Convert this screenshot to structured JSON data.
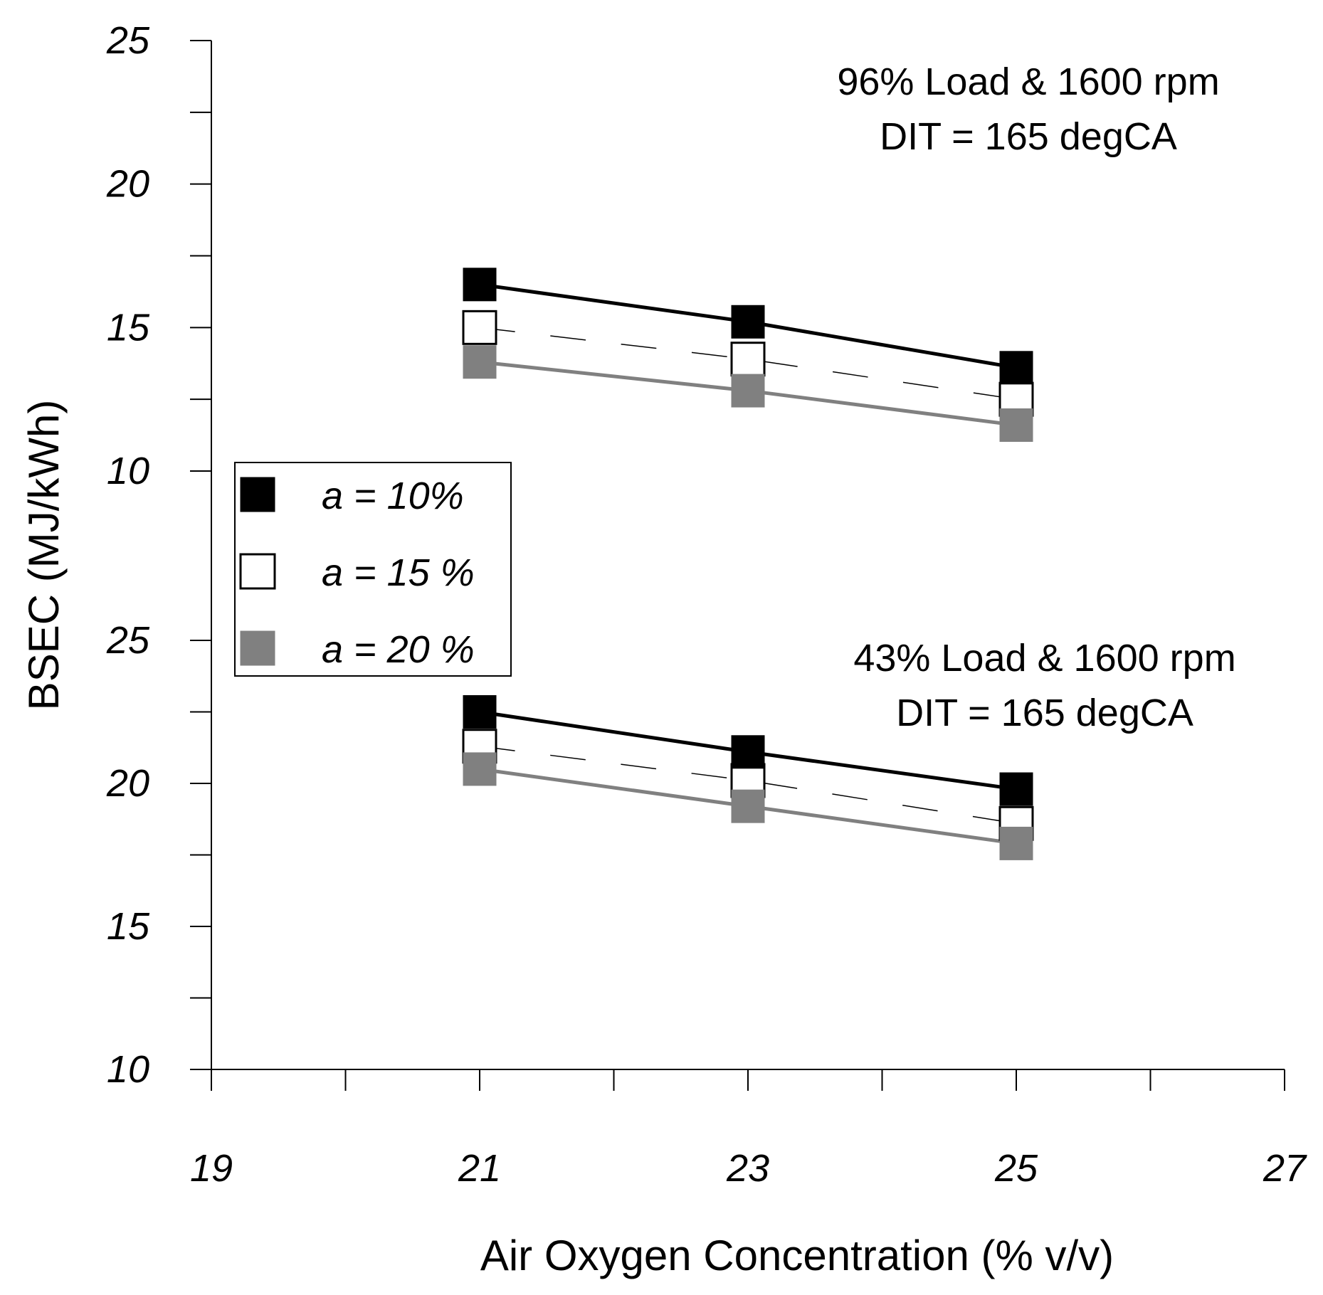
{
  "chart_data": {
    "type": "line",
    "xlabel": "Air Oxygen Concentration (% v/v)",
    "ylabel": "BSEC (MJ/kWh)",
    "xlim": [
      19,
      27
    ],
    "x_ticks": [
      "19",
      "21",
      "23",
      "25",
      "27"
    ],
    "panels": [
      {
        "name": "upper",
        "annotation": [
          "96% Load & 1600 rpm",
          "DIT = 165 degCA"
        ],
        "ylim": [
          10,
          25
        ],
        "y_ticks": [
          "10",
          "15",
          "20",
          "25"
        ],
        "x": [
          21,
          23,
          25
        ],
        "series": [
          {
            "name": "a = 10%",
            "values": [
              16.5,
              15.2,
              13.6
            ]
          },
          {
            "name": "a = 15 %",
            "values": [
              15.0,
              13.9,
              12.5
            ]
          },
          {
            "name": "a = 20 %",
            "values": [
              13.8,
              12.8,
              11.6
            ]
          }
        ]
      },
      {
        "name": "lower",
        "annotation": [
          "43% Load & 1600 rpm",
          "DIT = 165 degCA"
        ],
        "ylim": [
          10,
          25
        ],
        "y_ticks": [
          "10",
          "15",
          "20",
          "25"
        ],
        "x": [
          21,
          23,
          25
        ],
        "series": [
          {
            "name": "a = 10%",
            "values": [
              22.5,
              21.1,
              19.8
            ]
          },
          {
            "name": "a = 15 %",
            "values": [
              21.3,
              20.1,
              18.6
            ]
          },
          {
            "name": "a = 20 %",
            "values": [
              20.5,
              19.2,
              17.9
            ]
          }
        ]
      }
    ],
    "legend": {
      "placement": "left-middle",
      "entries": [
        {
          "label": "a = 10%",
          "marker": "filled-black-square",
          "line": "solid-black",
          "color": "#000000"
        },
        {
          "label": "a = 15 %",
          "marker": "open-square",
          "line": "dashed-black",
          "color": "#000000"
        },
        {
          "label": "a = 20 %",
          "marker": "filled-gray-square",
          "line": "solid-gray",
          "color": "#808080"
        }
      ]
    },
    "grid": false
  }
}
